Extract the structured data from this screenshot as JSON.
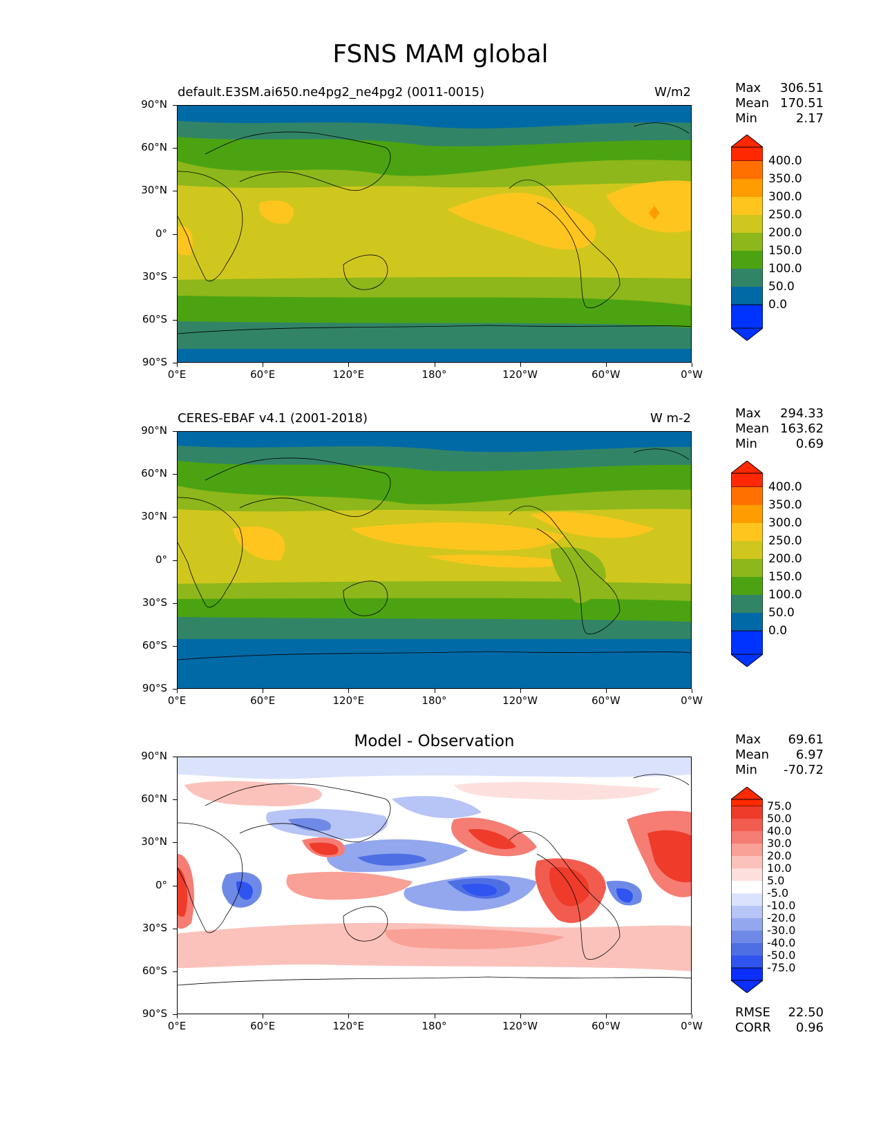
{
  "figure": {
    "title": "FSNS MAM global"
  },
  "axes": {
    "lat_labels": [
      "90°N",
      "60°N",
      "30°N",
      "0°",
      "30°S",
      "60°S",
      "90°S"
    ],
    "lon_labels": [
      "0°E",
      "60°E",
      "120°E",
      "180°",
      "120°W",
      "60°W",
      "0°W"
    ]
  },
  "panels": [
    {
      "id": "model",
      "left_title": "default.E3SM.ai650.ne4pg2_ne4pg2 (0011-0015)",
      "right_units": "W/m2",
      "center_title": "",
      "stats": {
        "max_label": "Max",
        "max": "306.51",
        "mean_label": "Mean",
        "mean": "170.51",
        "min_label": "Min",
        "min": "2.17"
      },
      "colorbar_labels": [
        "400.0",
        "350.0",
        "300.0",
        "250.0",
        "200.0",
        "150.0",
        "100.0",
        "50.0",
        "0.0"
      ]
    },
    {
      "id": "obs",
      "left_title": "CERES-EBAF v4.1 (2001-2018)",
      "right_units": "W m-2",
      "center_title": "",
      "stats": {
        "max_label": "Max",
        "max": "294.33",
        "mean_label": "Mean",
        "mean": "163.62",
        "min_label": "Min",
        "min": "0.69"
      },
      "colorbar_labels": [
        "400.0",
        "350.0",
        "300.0",
        "250.0",
        "200.0",
        "150.0",
        "100.0",
        "50.0",
        "0.0"
      ]
    },
    {
      "id": "diff",
      "left_title": "",
      "right_units": "",
      "center_title": "Model - Observation",
      "stats": {
        "max_label": "Max",
        "max": "69.61",
        "mean_label": "Mean",
        "mean": "6.97",
        "min_label": "Min",
        "min": "-70.72"
      },
      "colorbar_labels": [
        "75.0",
        "50.0",
        "40.0",
        "30.0",
        "20.0",
        "10.0",
        "5.0",
        "-5.0",
        "-10.0",
        "-20.0",
        "-30.0",
        "-40.0",
        "-50.0",
        "-75.0"
      ],
      "metrics": {
        "rmse_label": "RMSE",
        "rmse": "22.50",
        "corr_label": "CORR",
        "corr": "0.96"
      }
    }
  ],
  "colors": {
    "field_levels": [
      "#0033ff",
      "#006aa6",
      "#328467",
      "#4ba311",
      "#8db71a",
      "#d0c71e",
      "#ffc51f",
      "#ff9c00",
      "#ff7000",
      "#ff2800"
    ],
    "diff_levels": [
      "#0a2fff",
      "#2f54f0",
      "#4e6fe4",
      "#6f8ae6",
      "#93a7ef",
      "#b7c4f6",
      "#dbe2fb",
      "#ffffff",
      "#fde0dd",
      "#fbc2bb",
      "#f9a097",
      "#f57d73",
      "#f25c4f",
      "#ee3b2a",
      "#ff2a00"
    ]
  }
}
